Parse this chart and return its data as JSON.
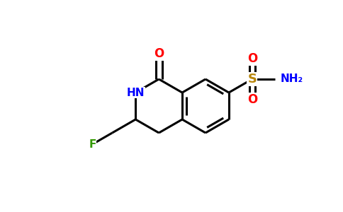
{
  "background_color": "#ffffff",
  "bond_color": "#000000",
  "bond_width": 2.2,
  "atom_colors": {
    "O": "#ff0000",
    "N": "#0000ff",
    "S": "#b8860b",
    "F": "#339900",
    "C": "#000000"
  },
  "figsize": [
    4.84,
    3.0
  ],
  "dpi": 100
}
